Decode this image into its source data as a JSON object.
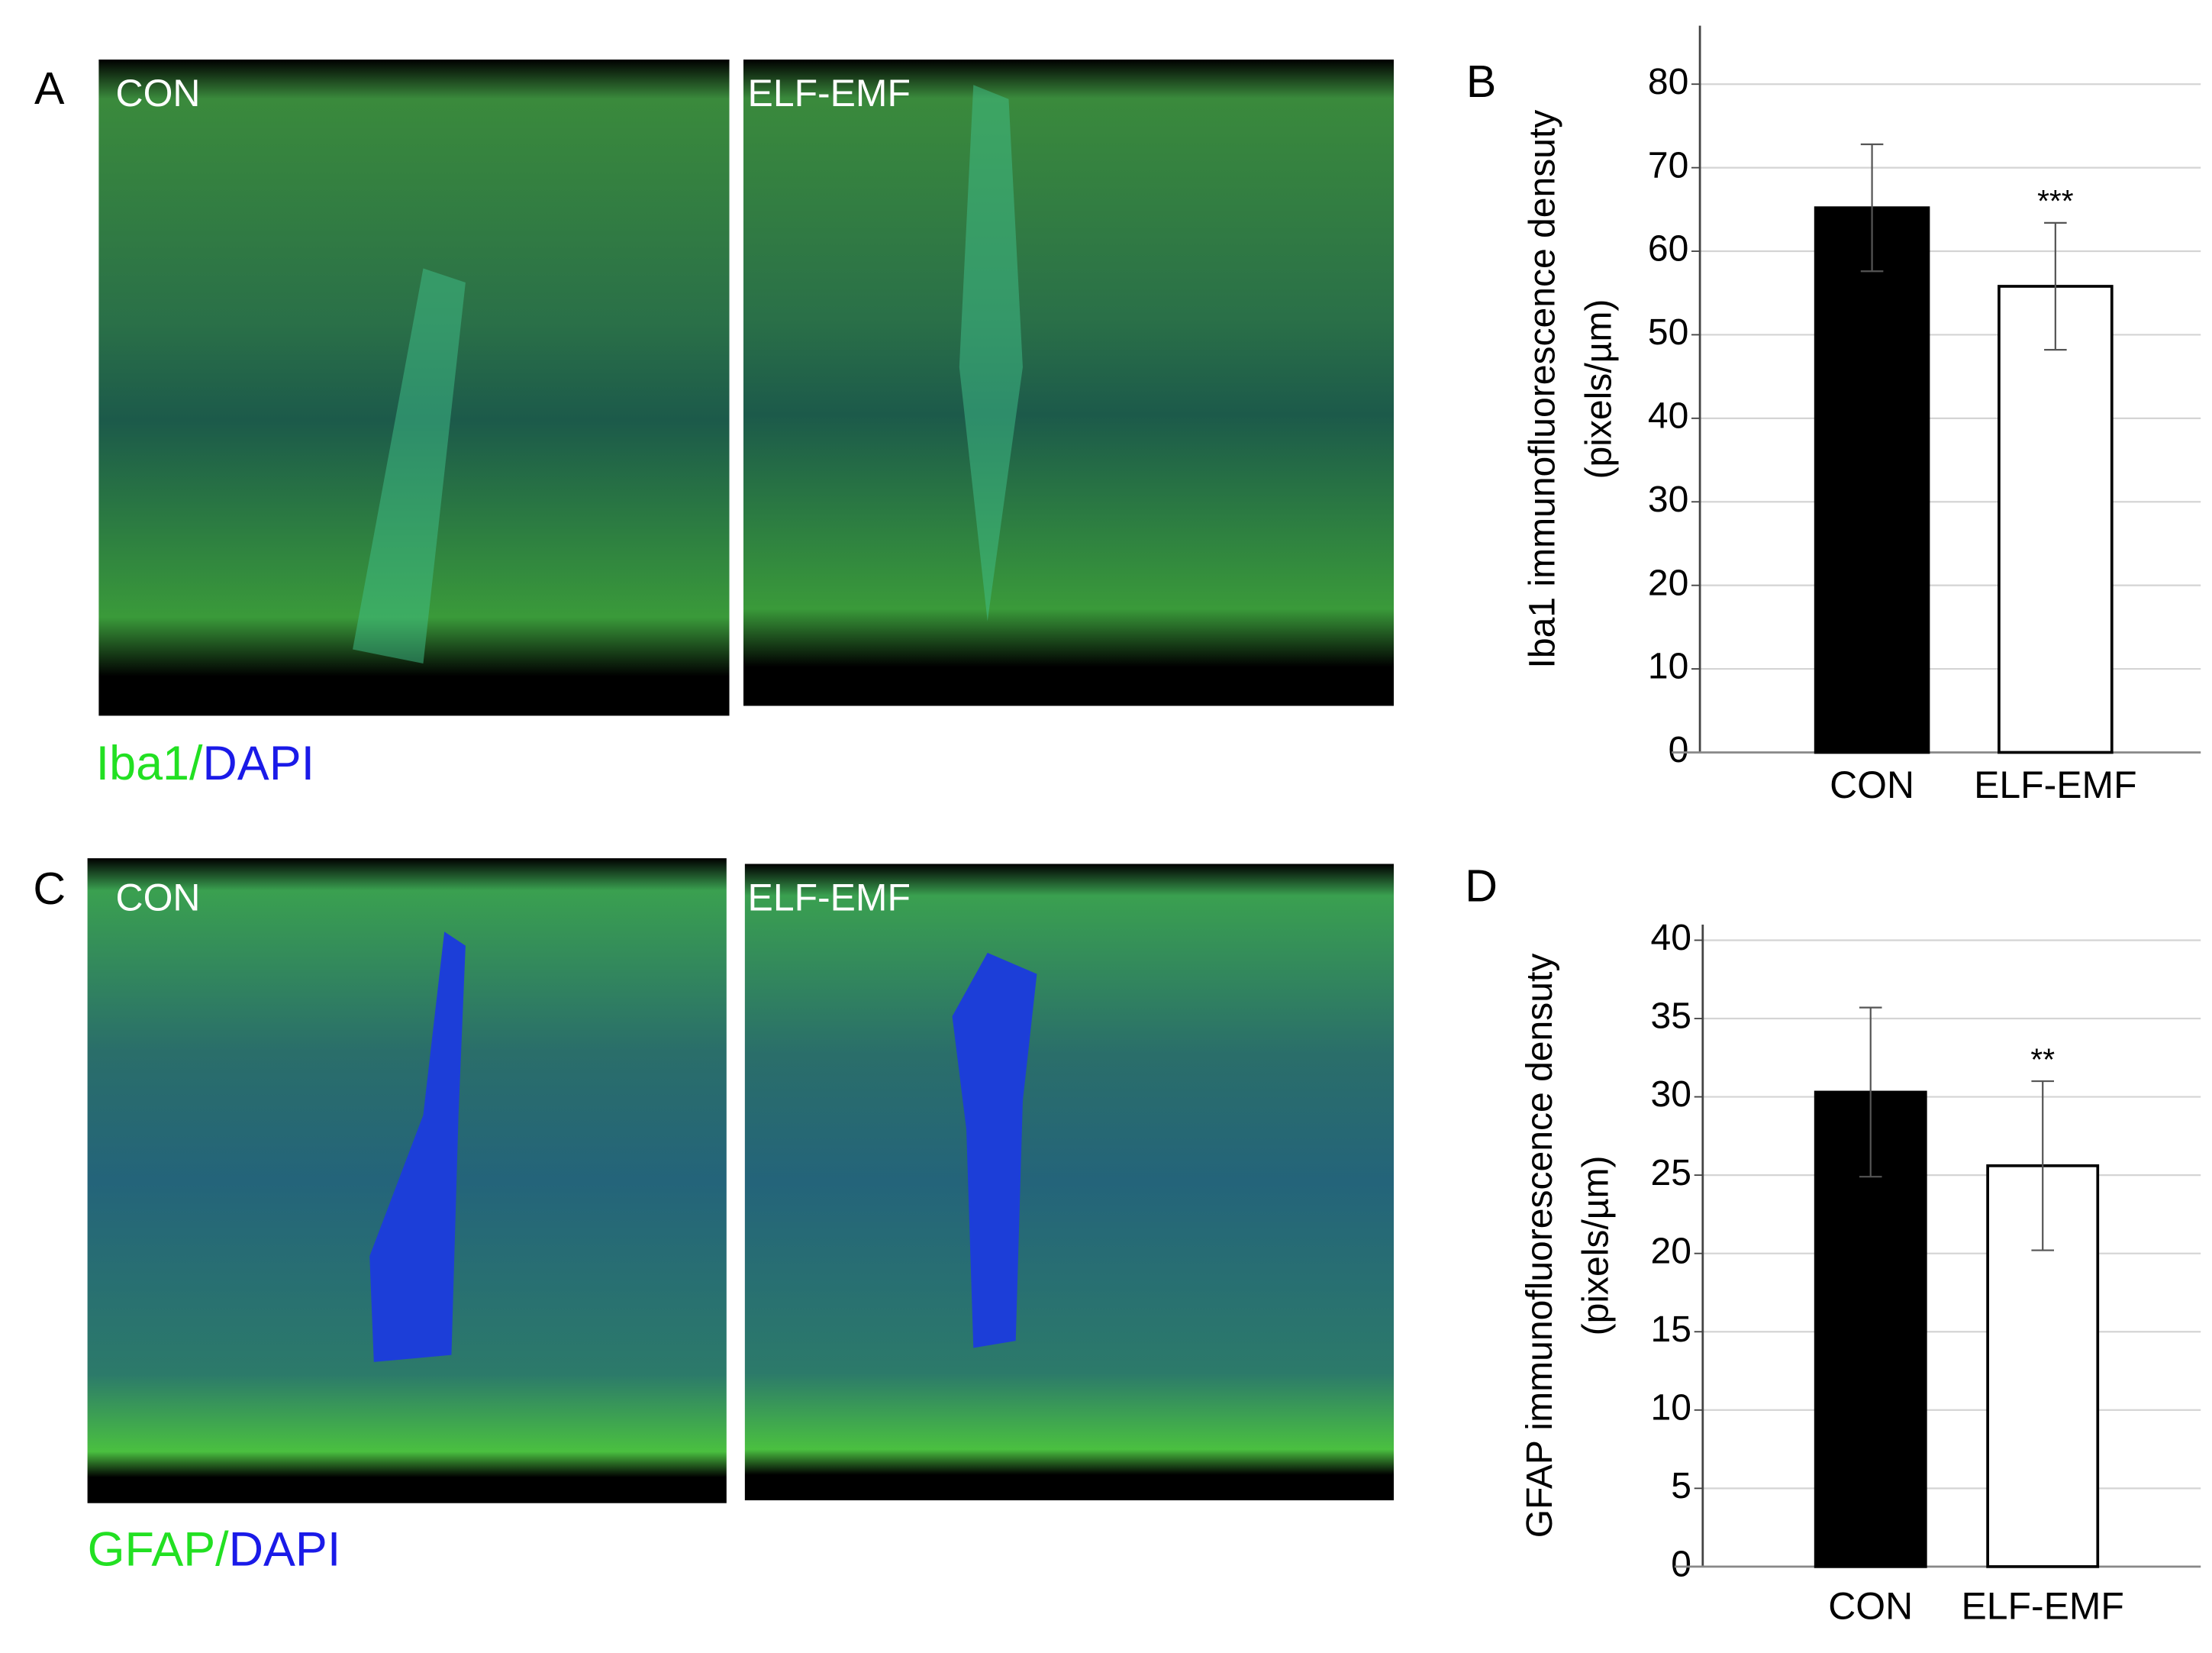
{
  "panels": [
    {
      "label": "A",
      "images": [
        "CON",
        "ELF-EMF"
      ],
      "stain": [
        "Iba1/",
        "DAPI"
      ]
    },
    {
      "label": "C",
      "images": [
        "CON",
        "ELF-EMF"
      ],
      "stain": [
        "GFAP/",
        "DAPI"
      ]
    }
  ],
  "chart_data": [
    {
      "type": "bar",
      "panel_label": "B",
      "ylabel": [
        "Iba1 immunofluorescence densuty",
        "(pixels/µm)"
      ],
      "categories": [
        "CON",
        "ELF-EMF"
      ],
      "values": [
        65.2,
        55.8
      ],
      "errors": [
        7.6,
        7.6
      ],
      "annotations": [
        null,
        "***"
      ],
      "colors": [
        "#000000",
        "#ffffff"
      ],
      "ylim": [
        0,
        87
      ],
      "yticks": [
        0,
        10,
        20,
        30,
        40,
        50,
        60,
        70,
        80
      ],
      "grid": true
    },
    {
      "type": "bar",
      "panel_label": "D",
      "ylabel": [
        "GFAP immunofluorescence densuty",
        "(pixels/µm)"
      ],
      "categories": [
        "CON",
        "ELF-EMF"
      ],
      "values": [
        30.3,
        25.6
      ],
      "errors": [
        5.4,
        5.4
      ],
      "annotations": [
        null,
        "**"
      ],
      "colors": [
        "#000000",
        "#ffffff"
      ],
      "ylim": [
        0,
        41
      ],
      "yticks": [
        0,
        5,
        10,
        15,
        20,
        25,
        30,
        35,
        40
      ],
      "grid": true
    }
  ]
}
